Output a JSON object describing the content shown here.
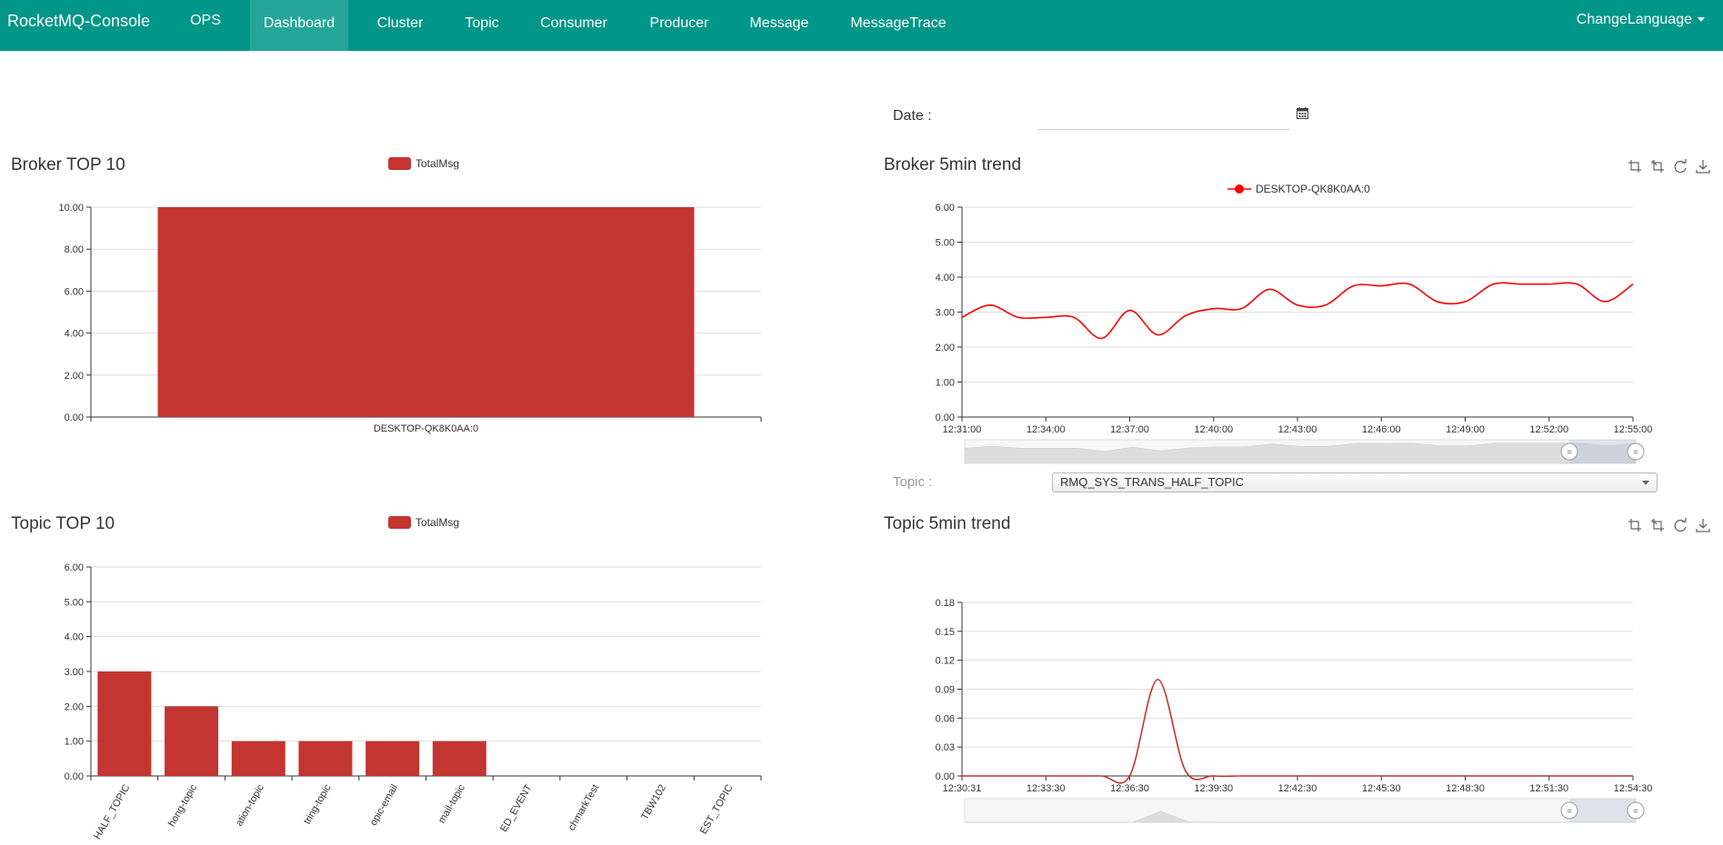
{
  "navbar": {
    "brand": "RocketMQ-Console",
    "items": [
      {
        "label": "OPS"
      },
      {
        "label": "Dashboard"
      },
      {
        "label": "Cluster"
      },
      {
        "label": "Topic"
      },
      {
        "label": "Consumer"
      },
      {
        "label": "Producer"
      },
      {
        "label": "Message"
      },
      {
        "label": "MessageTrace"
      }
    ],
    "active": "Dashboard",
    "language_label": "ChangeLanguage"
  },
  "filters": {
    "date_label": "Date :",
    "date_value": "",
    "topic_label": "Topic :",
    "topic_selected": "RMQ_SYS_TRANS_HALF_TOPIC"
  },
  "colors": {
    "navbar": "#009688",
    "bar": "#c23531",
    "trend_line": "#ff0000"
  },
  "chart_data": [
    {
      "type": "bar",
      "title": "Broker TOP 10",
      "legend": [
        "TotalMsg"
      ],
      "categories": [
        "DESKTOP-QK8K0AA:0"
      ],
      "values": [
        10
      ],
      "ylim": [
        0,
        10
      ],
      "yticks": [
        "0.00",
        "2.00",
        "4.00",
        "6.00",
        "8.00",
        "10.00"
      ]
    },
    {
      "type": "line",
      "title": "Broker 5min trend",
      "legend": [
        "DESKTOP-QK8K0AA:0"
      ],
      "xticks": [
        "12:31:00",
        "12:34:00",
        "12:37:00",
        "12:40:00",
        "12:43:00",
        "12:46:00",
        "12:49:00",
        "12:52:00",
        "12:55:00"
      ],
      "yticks": [
        "0.00",
        "1.00",
        "2.00",
        "3.00",
        "4.00",
        "5.00",
        "6.00"
      ],
      "ylim": [
        0,
        6
      ],
      "series": [
        {
          "name": "DESKTOP-QK8K0AA:0",
          "x": [
            0,
            1,
            2,
            3,
            4,
            5,
            6,
            7,
            8,
            9,
            10,
            11,
            12,
            13,
            14,
            15,
            16,
            17,
            18,
            19,
            20,
            21,
            22,
            23,
            24
          ],
          "values": [
            2.85,
            3.2,
            2.85,
            2.85,
            2.85,
            2.25,
            3.05,
            2.35,
            2.9,
            3.1,
            3.1,
            3.65,
            3.2,
            3.2,
            3.75,
            3.75,
            3.8,
            3.3,
            3.3,
            3.8,
            3.8,
            3.8,
            3.8,
            3.3,
            3.8
          ]
        }
      ],
      "toolbox": [
        "zoom-icon",
        "zoom-reset-icon",
        "restore-icon",
        "save-image-icon"
      ]
    },
    {
      "type": "bar",
      "title": "Topic TOP 10",
      "legend": [
        "TotalMsg"
      ],
      "categories": [
        "HALF_TOPIC",
        "hong-topic",
        "ation-topic",
        "tring-topic",
        "opic-email",
        "mail-topic",
        "ED_EVENT",
        "chmarkTest",
        "TBW102",
        "EST_TOPIC"
      ],
      "values": [
        3,
        2,
        1,
        1,
        1,
        1,
        0,
        0,
        0,
        0
      ],
      "ylim": [
        0,
        6
      ],
      "yticks": [
        "0.00",
        "1.00",
        "2.00",
        "3.00",
        "4.00",
        "5.00",
        "6.00"
      ]
    },
    {
      "type": "line",
      "title": "Topic 5min trend",
      "xticks": [
        "12:30:31",
        "12:33:30",
        "12:36:30",
        "12:39:30",
        "12:42:30",
        "12:45:30",
        "12:48:30",
        "12:51:30",
        "12:54:30"
      ],
      "yticks": [
        "0.00",
        "0.03",
        "0.06",
        "0.09",
        "0.12",
        "0.15",
        "0.18"
      ],
      "ylim": [
        0,
        0.18
      ],
      "series": [
        {
          "x": [
            0,
            1,
            2,
            3,
            4,
            5,
            6,
            7,
            8,
            9,
            10,
            11,
            12,
            13,
            14,
            15,
            16,
            17,
            18,
            19,
            20,
            21,
            22,
            23,
            24
          ],
          "values": [
            0,
            0,
            0,
            0,
            0,
            0,
            0,
            0.1,
            0.005,
            0,
            0,
            0,
            0,
            0,
            0,
            0,
            0,
            0,
            0,
            0,
            0,
            0,
            0,
            0,
            0
          ]
        }
      ],
      "toolbox": [
        "zoom-icon",
        "zoom-reset-icon",
        "restore-icon",
        "save-image-icon"
      ]
    }
  ]
}
